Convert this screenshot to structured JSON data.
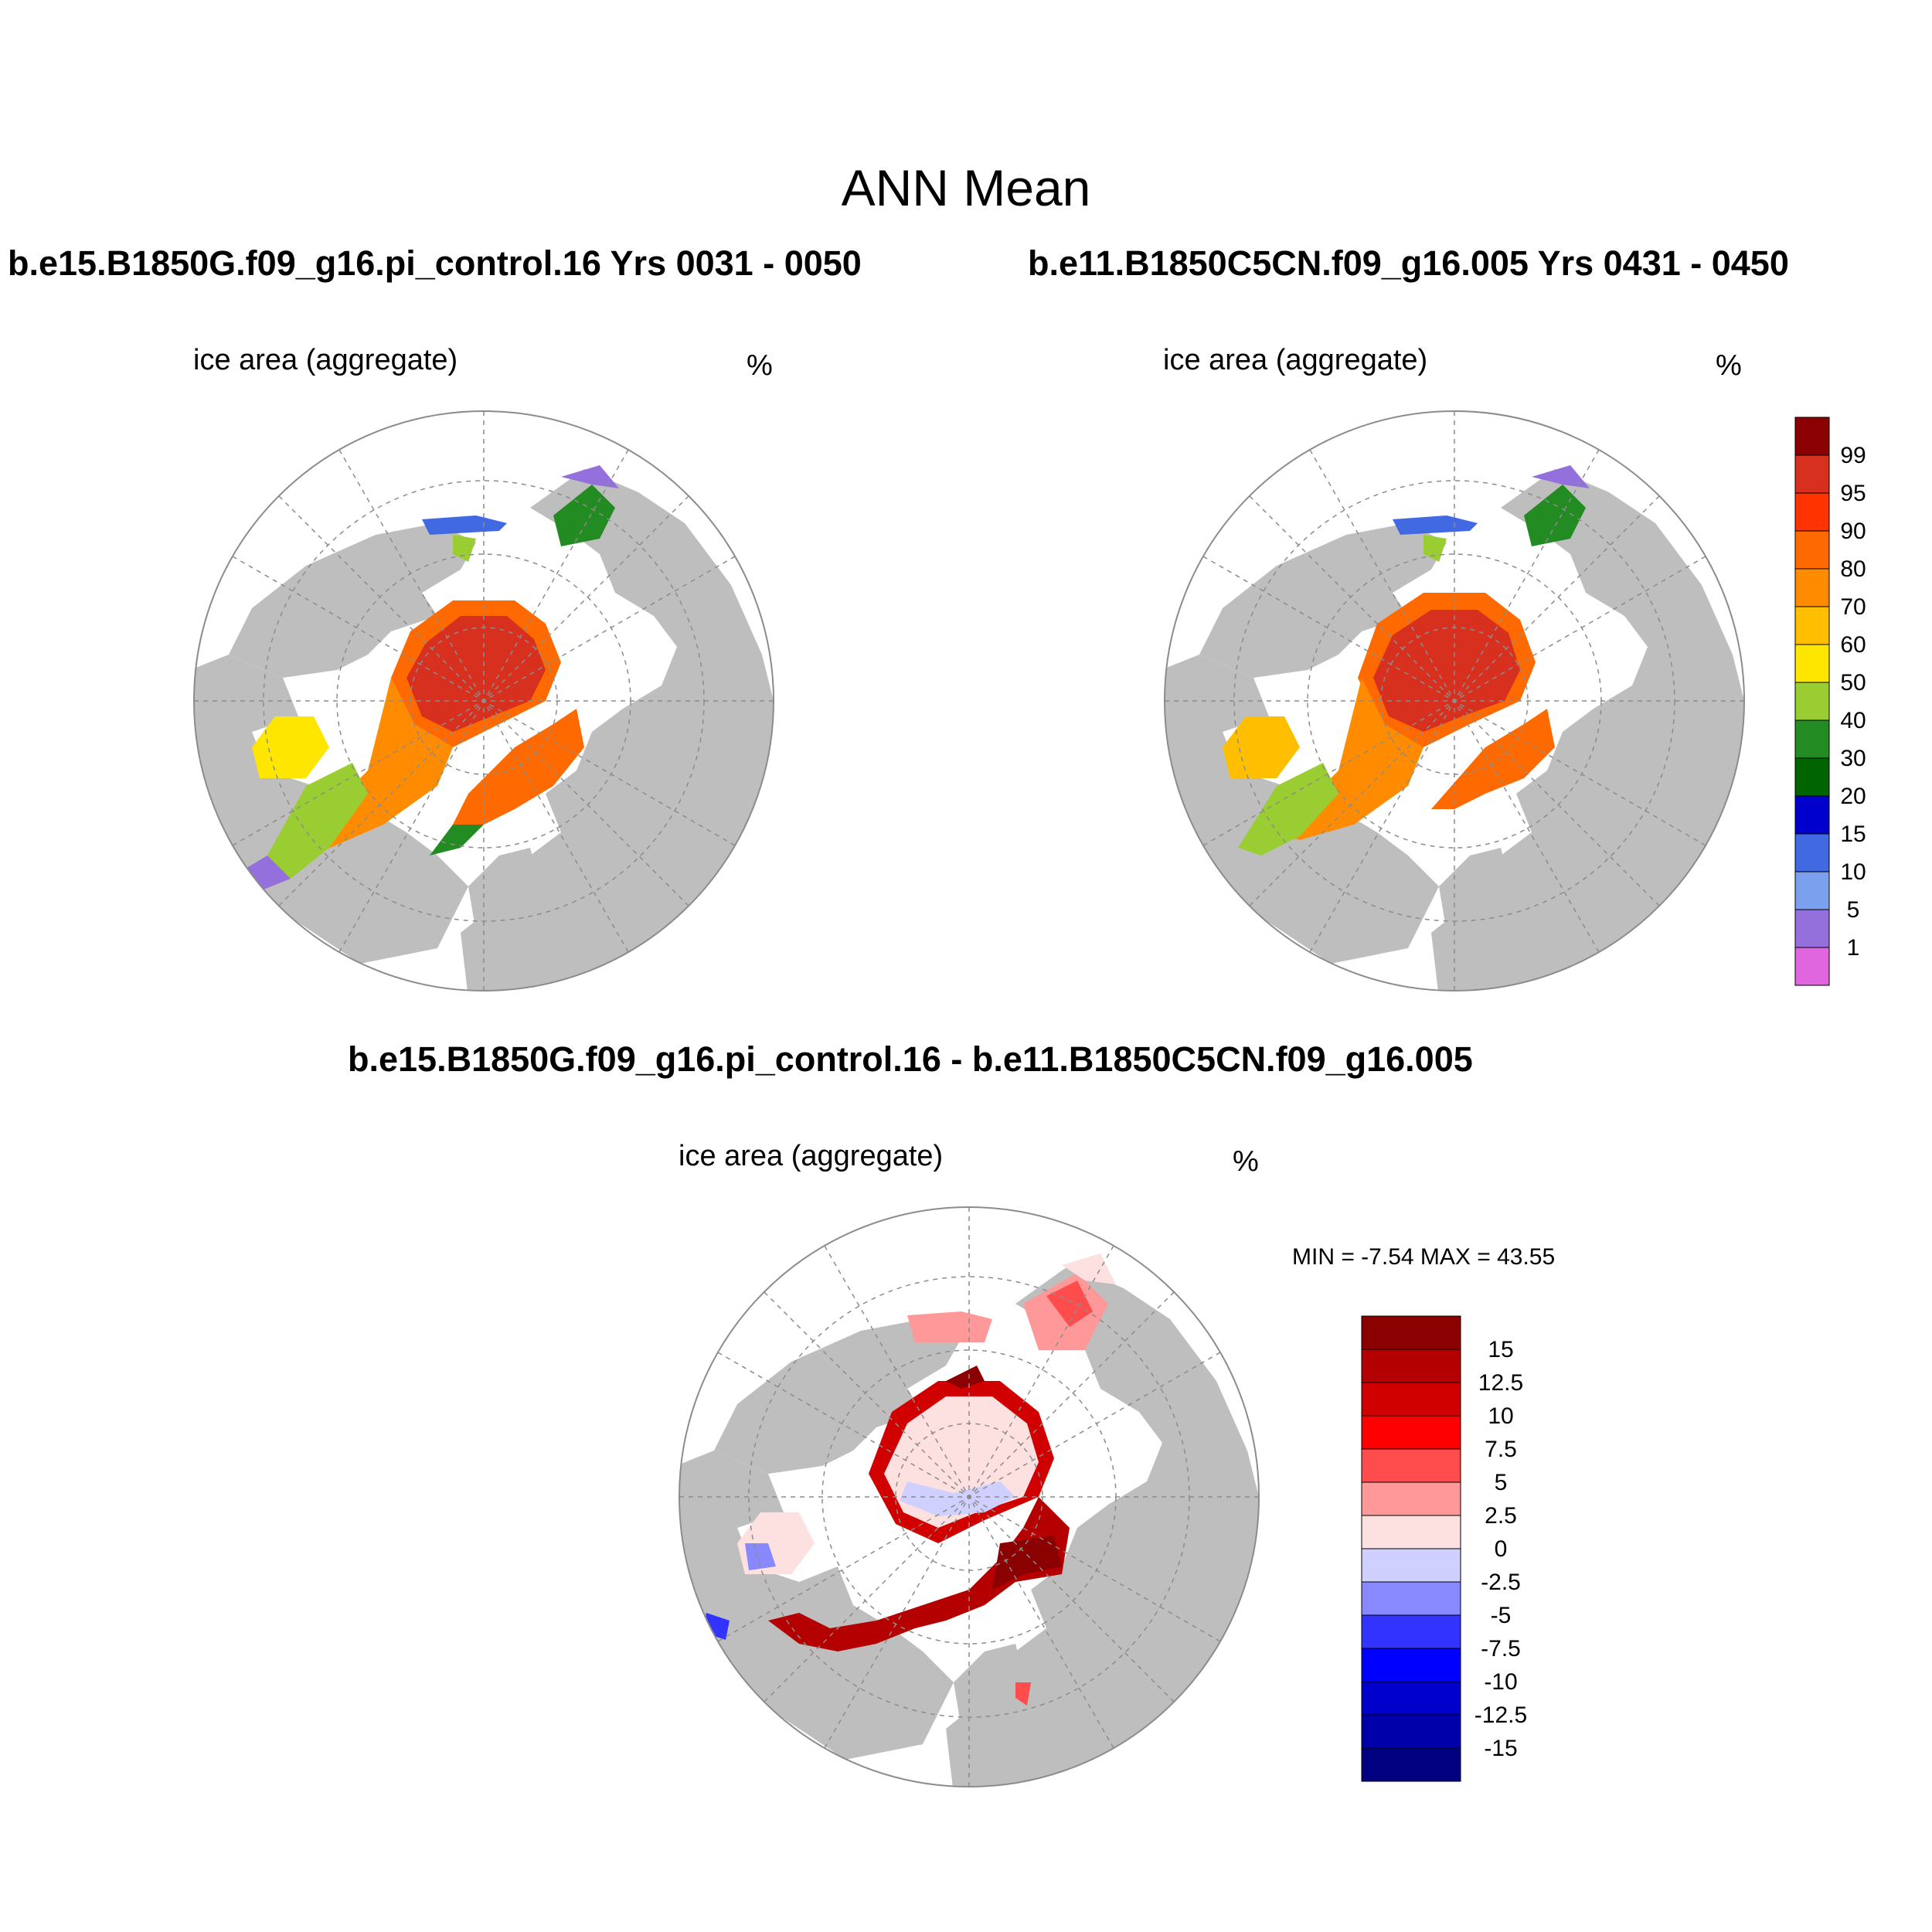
{
  "figure": {
    "title": "ANN Mean"
  },
  "panels": [
    {
      "id": "case1",
      "case_title": "b.e15.B1850G.f09_g16.pi_control.16  Yrs 0031 - 0050",
      "variable_label": "ice area  (aggregate)",
      "units": "%"
    },
    {
      "id": "case2",
      "case_title": "b.e11.B1850C5CN.f09_g16.005  Yrs 0431 - 0450",
      "variable_label": "ice area  (aggregate)",
      "units": "%"
    },
    {
      "id": "diff",
      "case_title": "b.e15.B1850G.f09_g16.pi_control.16 - b.e11.B1850C5CN.f09_g16.005",
      "variable_label": "ice area  (aggregate)",
      "units": "%",
      "min_max_text": "MIN =  -7.54 MAX =  43.55"
    }
  ],
  "colorbars": {
    "ice_area": {
      "labels": [
        "99",
        "95",
        "90",
        "80",
        "70",
        "60",
        "50",
        "40",
        "30",
        "20",
        "15",
        "10",
        "5",
        "1"
      ],
      "colors": [
        "#8b0000",
        "#d7301f",
        "#ff3300",
        "#ff6a00",
        "#ff8c00",
        "#ffbf00",
        "#ffe600",
        "#9acd32",
        "#228b22",
        "#006400",
        "#0000cd",
        "#4169e1",
        "#7ba1ee",
        "#9370db",
        "#e066e0"
      ]
    },
    "difference": {
      "labels": [
        "15",
        "12.5",
        "10",
        "7.5",
        "5",
        "2.5",
        "0",
        "-2.5",
        "-5",
        "-7.5",
        "-10",
        "-12.5",
        "-15"
      ],
      "colors": [
        "#8b0000",
        "#b40000",
        "#d00000",
        "#ff0000",
        "#ff4c4c",
        "#ff9999",
        "#fde0e0",
        "#d0d0ff",
        "#8888ff",
        "#3333ff",
        "#0000ff",
        "#0000cc",
        "#0000aa",
        "#000080"
      ]
    }
  },
  "map_colors": {
    "land": "#bebebe",
    "ocean": "#ffffff",
    "grid": "#8c8c8c"
  }
}
